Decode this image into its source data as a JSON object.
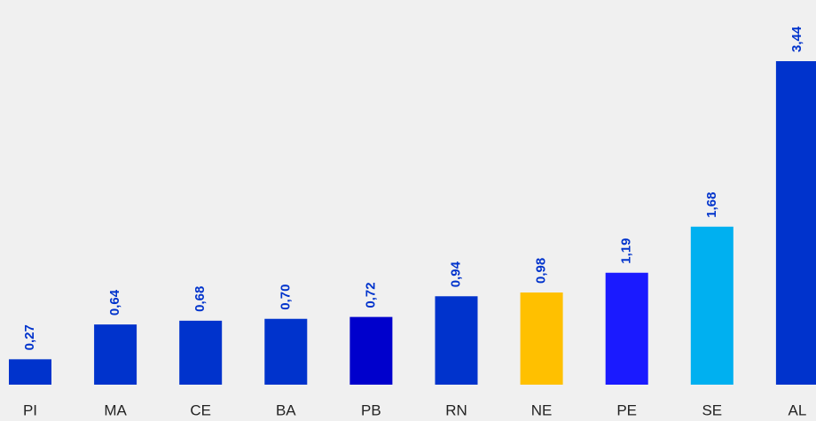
{
  "chart_data": {
    "type": "bar",
    "categories": [
      "PI",
      "MA",
      "CE",
      "BA",
      "PB",
      "RN",
      "NE",
      "PE",
      "SE",
      "AL"
    ],
    "values": [
      0.27,
      0.64,
      0.68,
      0.7,
      0.72,
      0.94,
      0.98,
      1.19,
      1.68,
      3.44
    ],
    "value_labels": [
      "0,27",
      "0,64",
      "0,68",
      "0,70",
      "0,72",
      "0,94",
      "0,98",
      "1,19",
      "1,68",
      "3,44"
    ],
    "colors": [
      "#0033cc",
      "#0033cc",
      "#0033cc",
      "#0033cc",
      "#0000cc",
      "#0033cc",
      "#ffc000",
      "#1a1aff",
      "#00b0f0",
      "#0033cc"
    ],
    "value_label_color": "#0033cc"
  }
}
